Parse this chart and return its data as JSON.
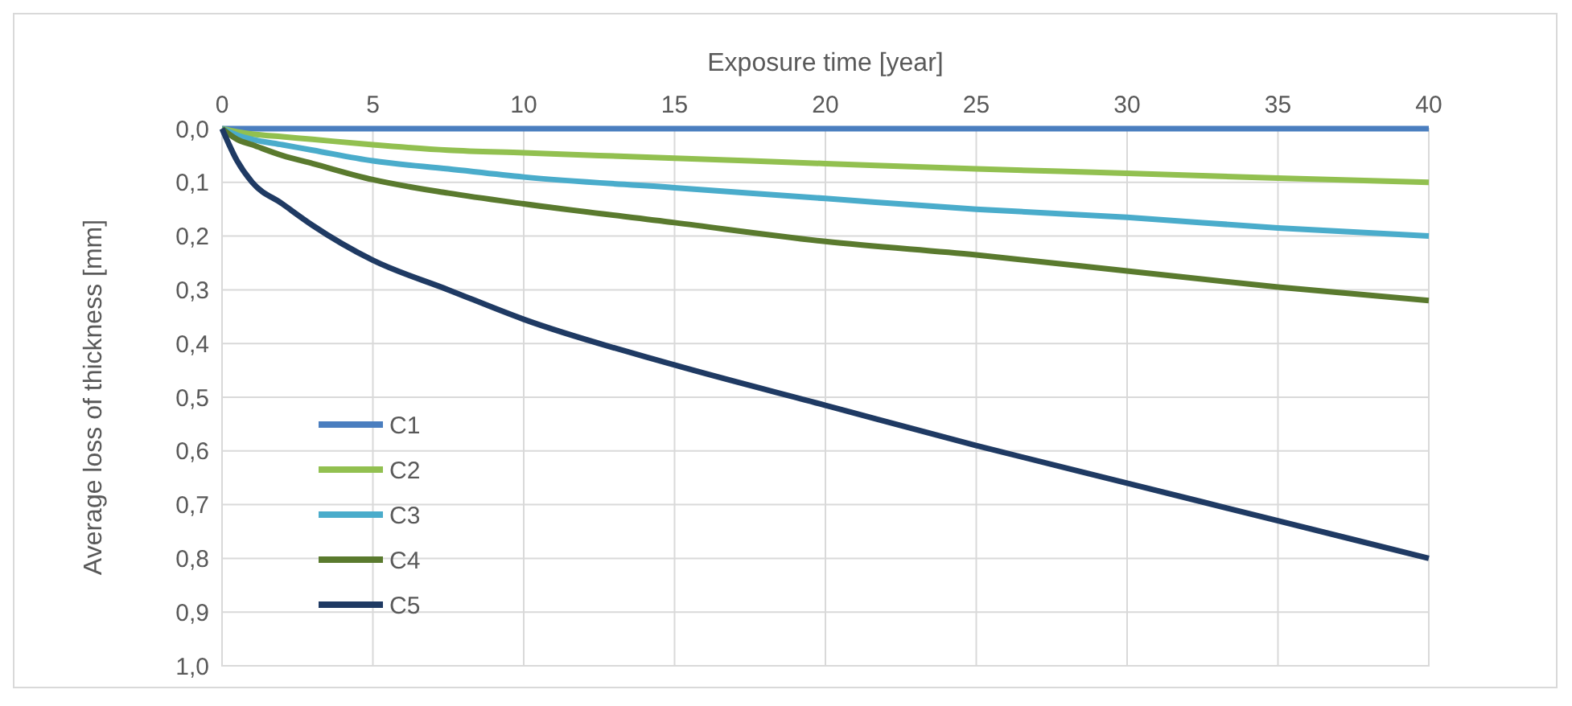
{
  "chart_data": {
    "type": "line",
    "xlabel": "Exposure time [year]",
    "ylabel": "Average loss of thickness [mm]",
    "xlim": [
      0,
      40
    ],
    "xticks": [
      0,
      5,
      10,
      15,
      20,
      25,
      30,
      35,
      40
    ],
    "ylim": [
      1,
      0
    ],
    "yticks": [
      {
        "value": 0,
        "label": "0,0"
      },
      {
        "value": 0.1,
        "label": "0,1"
      },
      {
        "value": 0.2,
        "label": "0,2"
      },
      {
        "value": 0.3,
        "label": "0,3"
      },
      {
        "value": 0.4,
        "label": "0,4"
      },
      {
        "value": 0.5,
        "label": "0,5"
      },
      {
        "value": 0.6,
        "label": "0,6"
      },
      {
        "value": 0.7,
        "label": "0,7"
      },
      {
        "value": 0.8,
        "label": "0,8"
      },
      {
        "value": 0.9,
        "label": "0,9"
      },
      {
        "value": 1,
        "label": "1,0"
      }
    ],
    "grid": true,
    "legend": "bottom left",
    "marker": "none",
    "line_style": "solid",
    "x": [
      0,
      0.5,
      1,
      2,
      3,
      5,
      7.5,
      10,
      15,
      20,
      25,
      30,
      35,
      40
    ],
    "series": [
      {
        "name": "C1",
        "color": "#4a7ebf",
        "values": [
          0,
          0,
          0,
          0,
          0,
          0,
          0,
          0,
          0,
          0,
          0,
          0,
          0,
          0
        ]
      },
      {
        "name": "C2",
        "color": "#92c050",
        "values": [
          0,
          0.006,
          0.01,
          0.015,
          0.02,
          0.03,
          0.04,
          0.045,
          0.055,
          0.065,
          0.075,
          0.083,
          0.092,
          0.1
        ]
      },
      {
        "name": "C3",
        "color": "#4aaccb",
        "values": [
          0,
          0.012,
          0.02,
          0.03,
          0.04,
          0.06,
          0.075,
          0.09,
          0.11,
          0.13,
          0.15,
          0.165,
          0.185,
          0.2
        ]
      },
      {
        "name": "C4",
        "color": "#5a7a2e",
        "values": [
          0,
          0.02,
          0.03,
          0.05,
          0.065,
          0.095,
          0.12,
          0.14,
          0.175,
          0.21,
          0.235,
          0.265,
          0.295,
          0.32
        ]
      },
      {
        "name": "C5",
        "color": "#1f3a63",
        "values": [
          0,
          0.06,
          0.1,
          0.14,
          0.18,
          0.245,
          0.3,
          0.355,
          0.44,
          0.515,
          0.59,
          0.66,
          0.73,
          0.8
        ]
      }
    ]
  }
}
